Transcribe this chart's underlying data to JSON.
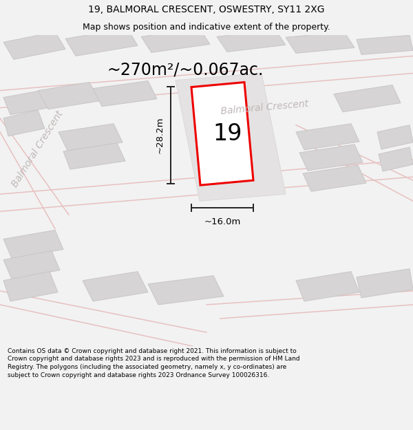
{
  "title_line1": "19, BALMORAL CRESCENT, OSWESTRY, SY11 2XG",
  "title_line2": "Map shows position and indicative extent of the property.",
  "area_label": "~270m²/~0.067ac.",
  "street_label_ur": "Balmoral Crescent",
  "street_label_ll": "Balmoral Crescent",
  "number_label": "19",
  "width_label": "~16.0m",
  "height_label": "~28.2m",
  "footer_text": "Contains OS data © Crown copyright and database right 2021. This information is subject to Crown copyright and database rights 2023 and is reproduced with the permission of HM Land Registry. The polygons (including the associated geometry, namely x, y co-ordinates) are subject to Crown copyright and database rights 2023 Ordnance Survey 100026316.",
  "bg_color": "#f2f2f2",
  "map_bg": "#eeecec",
  "plot_color": "#ee0000",
  "plot_fill": "#ffffff",
  "building_fill": "#d6d4d4",
  "building_edge": "#c8c6c6",
  "road_color": "#e8c0c0",
  "dim_color": "#222222",
  "street_color": "#c0b8b8",
  "title_fontsize": 10,
  "subtitle_fontsize": 9,
  "area_fontsize": 17,
  "street_fontsize": 10,
  "number_fontsize": 24,
  "dim_fontsize": 9.5,
  "footer_fontsize": 6.5
}
